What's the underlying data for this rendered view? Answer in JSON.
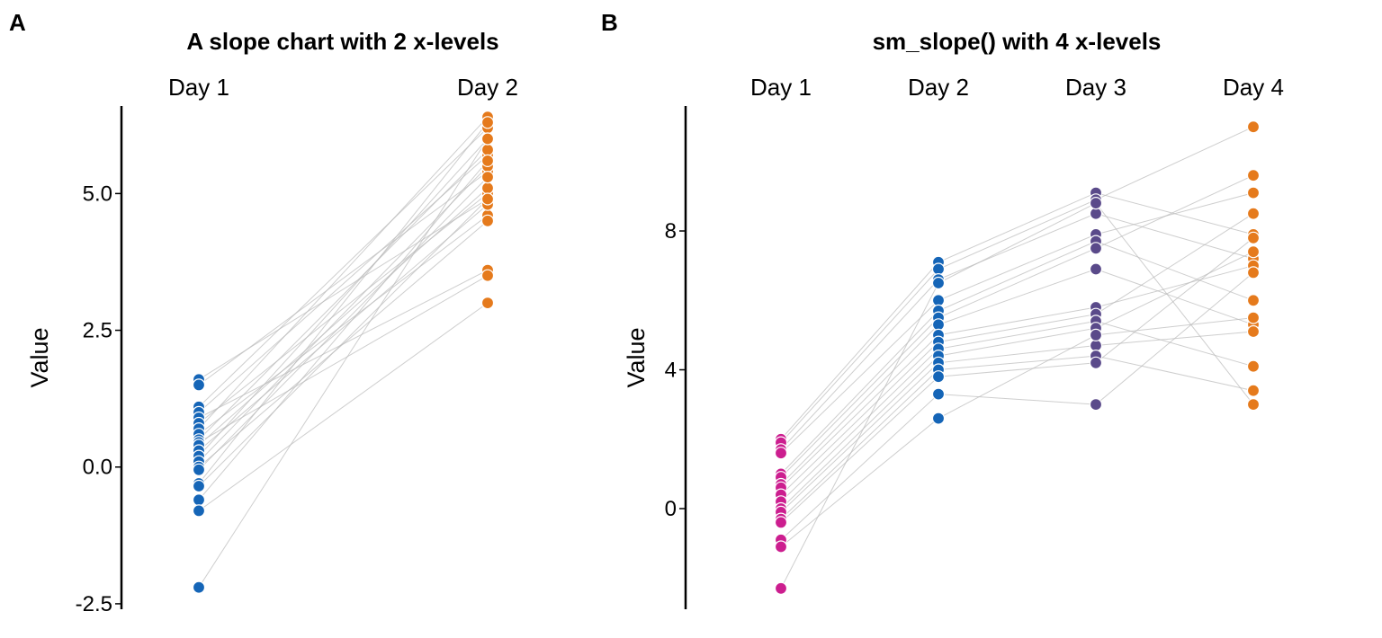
{
  "chart_data": [
    {
      "panel_tag": "A",
      "type": "line",
      "title": "A slope chart with 2 x-levels",
      "categories": [
        "Day 1",
        "Day 2"
      ],
      "ylabel": "Value",
      "ylim": [
        -2.6,
        6.6
      ],
      "yticks": [
        -2.5,
        0.0,
        2.5,
        5.0
      ],
      "ytick_labels": [
        "-2.5",
        "0.0",
        "2.5",
        "5.0"
      ],
      "grid": false,
      "legend": "none",
      "colors": [
        "#1565b7",
        "#e57a1c"
      ],
      "line_color": "#b9b9b9",
      "subjects": [
        [
          1.6,
          4.9
        ],
        [
          1.5,
          5.4
        ],
        [
          1.1,
          6.2
        ],
        [
          1.0,
          5.7
        ],
        [
          0.9,
          3.6
        ],
        [
          0.8,
          5.0
        ],
        [
          0.7,
          6.4
        ],
        [
          0.6,
          4.6
        ],
        [
          0.5,
          5.8
        ],
        [
          0.45,
          3.5
        ],
        [
          0.4,
          5.1
        ],
        [
          0.3,
          4.8
        ],
        [
          0.2,
          6.0
        ],
        [
          0.1,
          5.5
        ],
        [
          0.0,
          4.5
        ],
        [
          -0.05,
          5.3
        ],
        [
          -0.3,
          6.3
        ],
        [
          -0.35,
          4.9
        ],
        [
          -0.6,
          5.6
        ],
        [
          -0.8,
          3.0
        ],
        [
          -2.2,
          6.0
        ]
      ]
    },
    {
      "panel_tag": "B",
      "type": "line",
      "title": "sm_slope() with 4 x-levels",
      "categories": [
        "Day 1",
        "Day 2",
        "Day 3",
        "Day 4"
      ],
      "ylabel": "Value",
      "ylim": [
        -2.9,
        11.6
      ],
      "yticks": [
        0,
        4,
        8
      ],
      "ytick_labels": [
        "0",
        "4",
        "8"
      ],
      "grid": false,
      "legend": "none",
      "colors": [
        "#cc1e8f",
        "#1565b7",
        "#5a4a8a",
        "#e57a1c"
      ],
      "line_color": "#b9b9b9",
      "subjects": [
        [
          2.0,
          7.1,
          9.1,
          7.9
        ],
        [
          1.9,
          6.9,
          8.9,
          11.0
        ],
        [
          1.7,
          6.6,
          8.5,
          7.2
        ],
        [
          1.6,
          6.0,
          7.9,
          9.1
        ],
        [
          1.0,
          5.7,
          7.7,
          6.0
        ],
        [
          0.9,
          5.5,
          7.5,
          9.6
        ],
        [
          0.7,
          5.3,
          6.9,
          5.3
        ],
        [
          0.6,
          5.0,
          5.8,
          7.0
        ],
        [
          0.4,
          4.8,
          5.6,
          8.5
        ],
        [
          0.2,
          4.6,
          5.4,
          4.1
        ],
        [
          0.0,
          4.4,
          5.2,
          7.4
        ],
        [
          -0.1,
          4.2,
          4.7,
          5.1
        ],
        [
          -0.3,
          4.0,
          4.4,
          3.4
        ],
        [
          -0.4,
          3.8,
          4.2,
          7.8
        ],
        [
          -0.9,
          3.3,
          3.0,
          6.8
        ],
        [
          -1.1,
          2.6,
          5.0,
          5.5
        ],
        [
          -2.3,
          6.5,
          8.8,
          3.0
        ]
      ]
    }
  ]
}
